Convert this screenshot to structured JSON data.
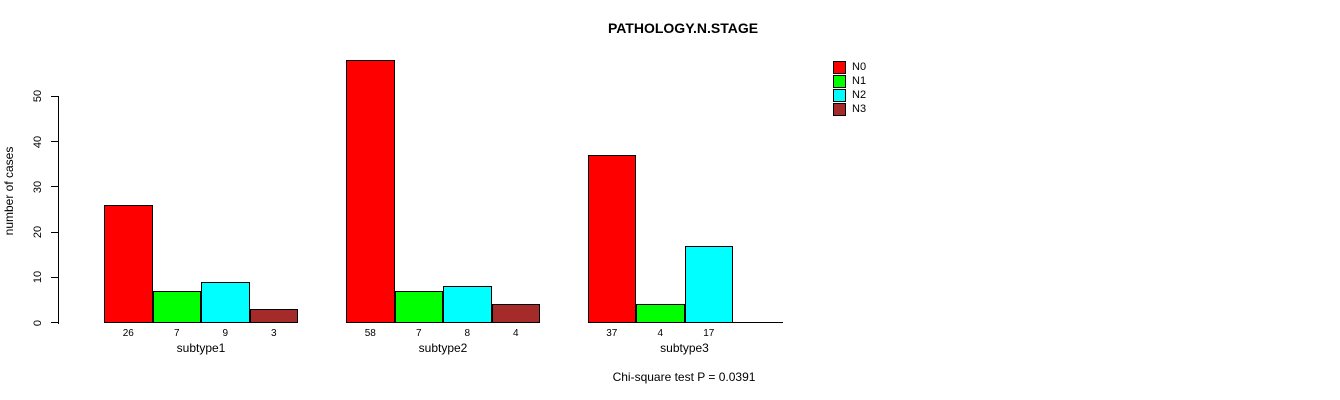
{
  "chart_data": {
    "type": "bar",
    "title": "PATHOLOGY.N.STAGE",
    "ylabel": "number of cases",
    "xlabel": "",
    "categories": [
      "subtype1",
      "subtype2",
      "subtype3"
    ],
    "series": [
      {
        "name": "N0",
        "color": "#FF0000",
        "values": [
          26,
          58,
          37
        ]
      },
      {
        "name": "N1",
        "color": "#00FF00",
        "values": [
          7,
          7,
          4
        ]
      },
      {
        "name": "N2",
        "color": "#00FFFF",
        "values": [
          9,
          8,
          17
        ]
      },
      {
        "name": "N3",
        "color": "#A52A2A",
        "values": [
          3,
          4,
          0
        ]
      }
    ],
    "yticks": [
      0,
      10,
      20,
      30,
      40,
      50
    ],
    "axis_range": [
      0,
      50
    ],
    "ymax_data": 58,
    "grid": false,
    "legend_position": "top-right",
    "legend_entries": [
      "N0",
      "N1",
      "N2",
      "N3"
    ],
    "bar_value_labels_visible": true,
    "zero_values_unlabeled": true,
    "annotation": "Chi-square test P = 0.0391",
    "bar_border_color": "#000000",
    "axis_color": "#000000"
  }
}
